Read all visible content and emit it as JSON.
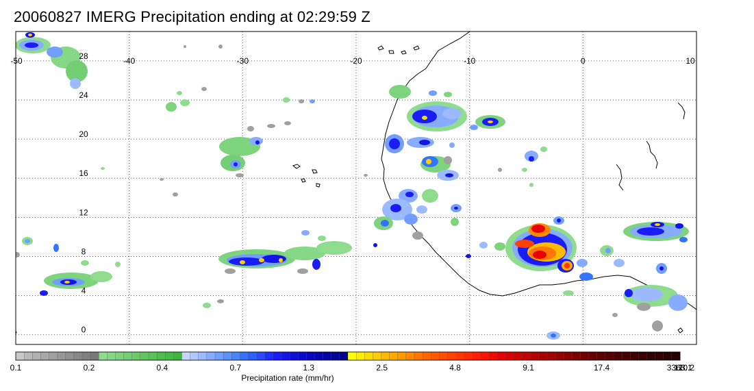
{
  "title": "20060827 IMERG Precipitation ending at 02:29:59 Z",
  "map": {
    "lon_range": [
      -50,
      10
    ],
    "lat_range": [
      -1,
      31
    ],
    "lon_ticks": [
      "-50",
      "-40",
      "-30",
      "-20",
      "-10",
      "0",
      "10"
    ],
    "lat_ticks": [
      "28",
      "24",
      "20",
      "16",
      "12",
      "8",
      "4",
      "0"
    ],
    "grid": "dotted",
    "colors": {
      "frame": "#000000",
      "coast": "#000000",
      "grid": "#555555"
    }
  },
  "colorbar": {
    "label": "Precipitation rate (mm/hr)",
    "tick_labels": [
      "0.1",
      "0.2",
      "0.4",
      "0.7",
      "1.3",
      "2.5",
      "4.8",
      "9.1",
      "17.4",
      "33.1",
      "63.1",
      "120.2"
    ],
    "colors": [
      "#c8c8c8",
      "#b9b9b9",
      "#b0b0b0",
      "#a8a8a8",
      "#a0a0a0",
      "#989898",
      "#909090",
      "#888888",
      "#808080",
      "#787878",
      "#8fdc8f",
      "#86d886",
      "#7dd47d",
      "#74cf74",
      "#6bcb6b",
      "#62c662",
      "#59c159",
      "#50bc50",
      "#48b848",
      "#40b340",
      "#c6d6ff",
      "#b1c8ff",
      "#9cbaff",
      "#87acff",
      "#729eff",
      "#5d90ff",
      "#4882ff",
      "#3374ff",
      "#2e5eff",
      "#2a48ff",
      "#1e2cff",
      "#1a1cf5",
      "#1414e6",
      "#0f0fd8",
      "#0a0aca",
      "#0707bd",
      "#0505b0",
      "#0303a3",
      "#020296",
      "#01018a",
      "#ffff00",
      "#ffee00",
      "#ffdd00",
      "#ffcc00",
      "#ffbb00",
      "#ffaa00",
      "#ff9900",
      "#ff8800",
      "#ff7700",
      "#ff6600",
      "#ff5a00",
      "#ff4e00",
      "#ff4200",
      "#ff3600",
      "#ff2a00",
      "#ff1e00",
      "#ff1200",
      "#f40800",
      "#e80000",
      "#dc0000",
      "#d00000",
      "#c40000",
      "#b80000",
      "#ac0000",
      "#a00000",
      "#940000",
      "#880000",
      "#7c0000",
      "#700000",
      "#640000",
      "#5a0000",
      "#520000",
      "#4a0000",
      "#440000",
      "#3e0000",
      "#380000",
      "#330000",
      "#2e0000",
      "#2a0000",
      "#260000"
    ]
  }
}
